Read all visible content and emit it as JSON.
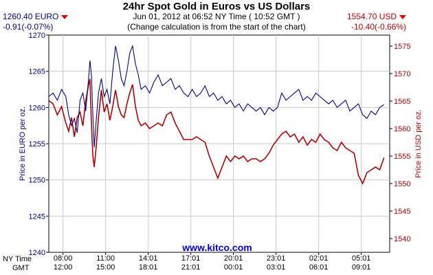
{
  "header": {
    "title": "24hr Spot Gold in Euros vs US Dollars",
    "subtitle": "Jun 01, 2012 at 06:52 NY Time ( 10:52 GMT )",
    "note": "(Change calculation is from the start of the chart)",
    "euro_price": "1260.40 EURO",
    "euro_change": "-0.91(-0.07%)",
    "usd_price": "1554.70 USD",
    "usd_change": "-10.40(-0.66%)"
  },
  "footer": {
    "ny_label": "NY Time",
    "gmt_label": "GMT",
    "watermark": "www.kitco.com"
  },
  "colors": {
    "euro": "#000080",
    "usd": "#b00000",
    "grid": "#c8c8c8",
    "change_arrow": "#e00000",
    "watermark": "#0000cc"
  },
  "icons": [
    "down-triangle-icon",
    "down-triangle-icon"
  ],
  "chart_data": {
    "type": "line",
    "title": "24hr Spot Gold in Euros vs US Dollars",
    "ylabel": "Price in EURO per oz.",
    "y2label": "Price in USD per oz.",
    "ylim": [
      1240,
      1270
    ],
    "y2lim": [
      1537.5,
      1577
    ],
    "yticks": [
      1240,
      1245,
      1250,
      1255,
      1260,
      1265,
      1270
    ],
    "y2ticks": [
      1540,
      1545,
      1550,
      1555,
      1560,
      1565,
      1570,
      1575
    ],
    "xlim": [
      0,
      24
    ],
    "xticks": [
      {
        "x": 1,
        "ny": "08:00",
        "gmt": "12:00"
      },
      {
        "x": 4,
        "ny": "11:00",
        "gmt": "15:00"
      },
      {
        "x": 7,
        "ny": "14:01",
        "gmt": "18:01"
      },
      {
        "x": 10,
        "ny": "17:01",
        "gmt": "21:01"
      },
      {
        "x": 13,
        "ny": "20:01",
        "gmt": "00:01"
      },
      {
        "x": 16,
        "ny": "23:01",
        "gmt": "03:01"
      },
      {
        "x": 19,
        "ny": "02:01",
        "gmt": "06:01"
      },
      {
        "x": 22,
        "ny": "05:01",
        "gmt": "09:01"
      }
    ],
    "grid": true,
    "series": [
      {
        "name": "EURO",
        "axis": "left",
        "x": [
          0,
          0.3,
          0.6,
          0.9,
          1.2,
          1.4,
          1.6,
          1.8,
          2.0,
          2.2,
          2.4,
          2.6,
          2.8,
          2.9,
          3.0,
          3.1,
          3.2,
          3.35,
          3.5,
          3.7,
          3.9,
          4.1,
          4.3,
          4.5,
          4.7,
          4.9,
          5.1,
          5.3,
          5.5,
          5.7,
          5.9,
          6.1,
          6.3,
          6.5,
          6.8,
          7.1,
          7.4,
          7.7,
          8.0,
          8.3,
          8.6,
          8.9,
          9.2,
          9.5,
          9.8,
          10.1,
          10.4,
          10.7,
          11.0,
          11.3,
          11.6,
          11.9,
          12.2,
          12.5,
          12.8,
          13.1,
          13.4,
          13.7,
          14.0,
          14.3,
          14.6,
          14.9,
          15.2,
          15.5,
          15.8,
          16.1,
          16.4,
          16.7,
          17.0,
          17.3,
          17.6,
          17.9,
          18.2,
          18.5,
          18.8,
          19.1,
          19.4,
          19.7,
          20.0,
          20.3,
          20.6,
          20.9,
          21.2,
          21.5,
          21.8,
          22.1,
          22.4,
          22.7,
          23.0,
          23.3,
          23.6
        ],
        "values": [
          1261.5,
          1262.0,
          1261.0,
          1262.5,
          1261.5,
          1259.0,
          1257.5,
          1258.5,
          1256.5,
          1261.0,
          1262.0,
          1259.5,
          1264.0,
          1266.5,
          1264.5,
          1259.0,
          1254.5,
          1258.5,
          1262.0,
          1264.0,
          1261.5,
          1262.5,
          1260.5,
          1265.0,
          1268.5,
          1266.5,
          1264.0,
          1263.0,
          1265.0,
          1267.5,
          1268.5,
          1266.0,
          1264.5,
          1262.5,
          1263.0,
          1262.0,
          1263.5,
          1264.5,
          1263.0,
          1263.5,
          1264.0,
          1262.5,
          1263.0,
          1262.0,
          1261.5,
          1262.5,
          1261.5,
          1262.0,
          1263.0,
          1261.5,
          1262.0,
          1261.0,
          1261.5,
          1260.5,
          1261.0,
          1260.0,
          1260.5,
          1259.5,
          1260.5,
          1260.0,
          1259.5,
          1260.0,
          1259.0,
          1260.0,
          1259.5,
          1260.0,
          1262.0,
          1261.0,
          1261.5,
          1262.0,
          1262.5,
          1261.0,
          1261.5,
          1261.0,
          1262.0,
          1261.5,
          1261.0,
          1260.5,
          1261.0,
          1260.0,
          1260.5,
          1261.0,
          1259.5,
          1260.0,
          1260.5,
          1259.0,
          1258.5,
          1259.5,
          1259.0,
          1260.0,
          1260.4
        ]
      },
      {
        "name": "USD",
        "axis": "right",
        "x": [
          0,
          0.3,
          0.6,
          0.9,
          1.2,
          1.4,
          1.6,
          1.8,
          2.0,
          2.2,
          2.4,
          2.6,
          2.8,
          2.9,
          3.0,
          3.1,
          3.2,
          3.35,
          3.5,
          3.7,
          3.9,
          4.1,
          4.3,
          4.5,
          4.7,
          4.9,
          5.1,
          5.3,
          5.5,
          5.7,
          5.9,
          6.1,
          6.3,
          6.5,
          6.8,
          7.1,
          7.4,
          7.7,
          8.0,
          8.3,
          8.6,
          8.9,
          9.2,
          9.5,
          9.8,
          10.1,
          10.4,
          10.7,
          11.0,
          11.3,
          11.6,
          11.9,
          12.2,
          12.5,
          12.8,
          13.1,
          13.4,
          13.7,
          14.0,
          14.3,
          14.6,
          14.9,
          15.2,
          15.5,
          15.8,
          16.1,
          16.4,
          16.7,
          17.0,
          17.3,
          17.6,
          17.9,
          18.2,
          18.5,
          18.8,
          19.1,
          19.4,
          19.7,
          20.0,
          20.3,
          20.6,
          20.9,
          21.2,
          21.5,
          21.8,
          22.1,
          22.4,
          22.7,
          23.0,
          23.3,
          23.6
        ],
        "values": [
          1565.1,
          1564.5,
          1562.5,
          1564.0,
          1561.0,
          1559.5,
          1562.0,
          1558.5,
          1562.0,
          1563.0,
          1560.5,
          1565.0,
          1568.0,
          1569.0,
          1561.0,
          1555.0,
          1553.0,
          1557.0,
          1562.0,
          1567.0,
          1563.0,
          1564.5,
          1561.5,
          1564.0,
          1567.0,
          1564.0,
          1562.5,
          1562.0,
          1564.5,
          1566.5,
          1568.0,
          1564.0,
          1561.5,
          1560.5,
          1561.0,
          1560.0,
          1560.5,
          1561.0,
          1560.5,
          1562.5,
          1563.0,
          1561.0,
          1559.5,
          1558.0,
          1558.0,
          1558.0,
          1558.5,
          1558.0,
          1557.5,
          1555.0,
          1553.0,
          1551.0,
          1553.0,
          1555.0,
          1554.0,
          1555.0,
          1554.5,
          1555.0,
          1554.0,
          1554.5,
          1554.5,
          1554.0,
          1554.5,
          1555.5,
          1557.0,
          1558.0,
          1559.0,
          1559.5,
          1558.5,
          1559.0,
          1557.5,
          1558.5,
          1557.0,
          1558.0,
          1557.5,
          1559.0,
          1558.0,
          1557.5,
          1556.5,
          1556.0,
          1557.5,
          1556.5,
          1556.0,
          1555.5,
          1551.5,
          1550.0,
          1552.0,
          1552.5,
          1553.0,
          1552.5,
          1554.7
        ]
      }
    ]
  }
}
